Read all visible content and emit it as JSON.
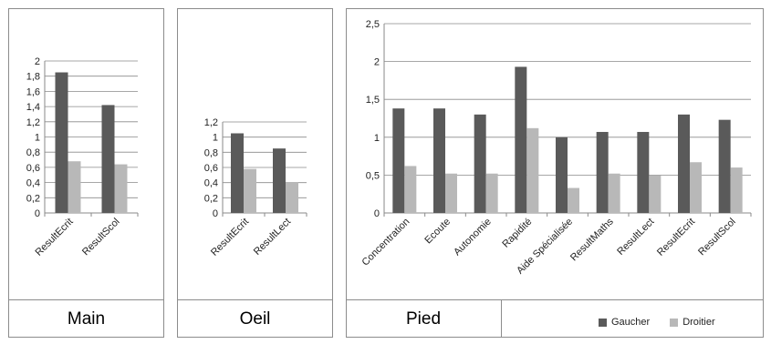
{
  "panels": [
    {
      "id": "main",
      "caption": "Main"
    },
    {
      "id": "oeil",
      "caption": "Oeil"
    },
    {
      "id": "pied",
      "caption": "Pied"
    }
  ],
  "legend": [
    {
      "name": "Gaucher",
      "color": "#5a5a5a"
    },
    {
      "name": "Droitier",
      "color": "#b8b8b8"
    }
  ],
  "chart_data": [
    {
      "type": "bar",
      "categories": [
        "ResultEcrit",
        "ResultScol"
      ],
      "series": [
        {
          "name": "Gaucher",
          "values": [
            1.85,
            1.42
          ]
        },
        {
          "name": "Droitier",
          "values": [
            0.68,
            0.64
          ]
        }
      ],
      "ylim": [
        0,
        2
      ],
      "yticks": [
        "0",
        "0,2",
        "0,4",
        "0,6",
        "0,8",
        "1",
        "1,2",
        "1,4",
        "1,6",
        "1,8",
        "2"
      ],
      "grid": true
    },
    {
      "type": "bar",
      "categories": [
        "ResultEcrit",
        "ResultLect"
      ],
      "series": [
        {
          "name": "Gaucher",
          "values": [
            1.05,
            0.85
          ]
        },
        {
          "name": "Droitier",
          "values": [
            0.58,
            0.4
          ]
        }
      ],
      "ylim": [
        0,
        1.2
      ],
      "yticks": [
        "0",
        "0,2",
        "0,4",
        "0,6",
        "0,8",
        "1",
        "1,2"
      ],
      "grid": true
    },
    {
      "type": "bar",
      "categories": [
        "Concentration",
        "Ecoute",
        "Autonomie",
        "Rapidité",
        "Aide Spécialisée",
        "ResultMaths",
        "ResultLect",
        "ResultEcrit",
        "ResultScol"
      ],
      "series": [
        {
          "name": "Gaucher",
          "values": [
            1.38,
            1.38,
            1.3,
            1.93,
            1.0,
            1.07,
            1.07,
            1.3,
            1.23
          ]
        },
        {
          "name": "Droitier",
          "values": [
            0.62,
            0.52,
            0.52,
            1.12,
            0.33,
            0.52,
            0.5,
            0.67,
            0.6
          ]
        }
      ],
      "ylim": [
        0,
        2.5
      ],
      "yticks": [
        "0",
        "0,5",
        "1",
        "1,5",
        "2",
        "2,5"
      ],
      "grid": true,
      "legend_position": "bottom"
    }
  ]
}
